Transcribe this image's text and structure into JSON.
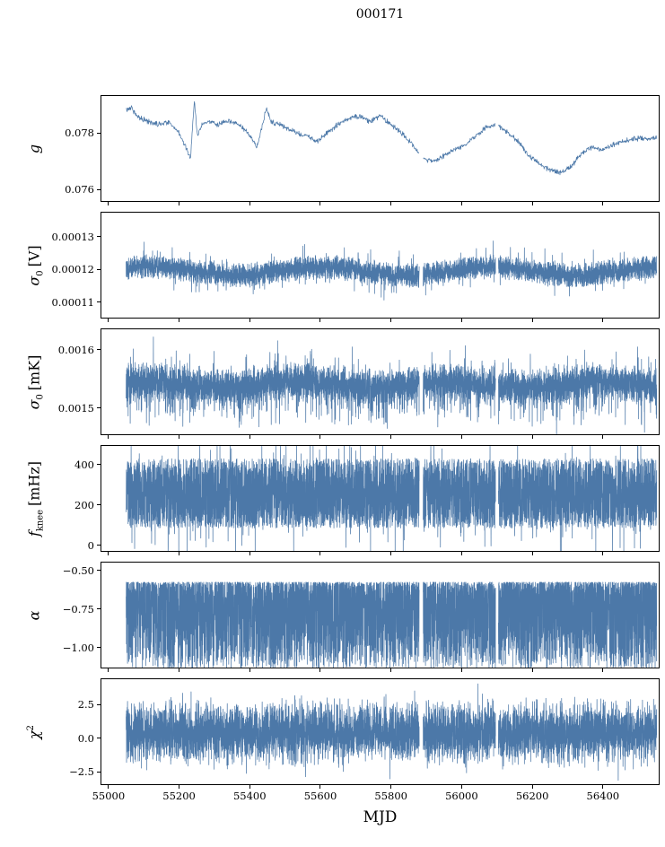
{
  "title": "000171",
  "chart_data": {
    "type": "line",
    "title": "000171",
    "xlabel": "MJD",
    "x_range": [
      54980,
      56558
    ],
    "x_data_range": [
      55050,
      56552
    ],
    "x_ticks": [
      {
        "v": 55000,
        "t": "55000"
      },
      {
        "v": 55200,
        "t": "55200"
      },
      {
        "v": 55400,
        "t": "55400"
      },
      {
        "v": 55600,
        "t": "55600"
      },
      {
        "v": 55800,
        "t": "55800"
      },
      {
        "v": 56000,
        "t": "56000"
      },
      {
        "v": 56200,
        "t": "56200"
      },
      {
        "v": 56400,
        "t": "56400"
      }
    ],
    "line_color": "#4c78a8",
    "axis_color": "#000000",
    "background": "#ffffff",
    "legend": "none",
    "grid": false,
    "gaps": [
      [
        55880,
        55891
      ],
      [
        56096,
        56104
      ]
    ],
    "panels": [
      {
        "id": "g",
        "label": {
          "main": "g",
          "sub": "",
          "sup": "",
          "unit": ""
        },
        "ylim": [
          0.0756,
          0.0793
        ],
        "yticks": [
          {
            "v": 0.076,
            "t": "0.076"
          },
          {
            "v": 0.078,
            "t": "0.078"
          }
        ],
        "style": "trend",
        "noise": 0.00011,
        "trend_x": [
          55050,
          55065,
          55080,
          55110,
          55140,
          55170,
          55200,
          55215,
          55232,
          55243,
          55252,
          55265,
          55280,
          55310,
          55340,
          55370,
          55400,
          55420,
          55435,
          55447,
          55460,
          55480,
          55500,
          55530,
          55560,
          55590,
          55620,
          55650,
          55680,
          55710,
          55740,
          55770,
          55800,
          55830,
          55860,
          55890,
          55920,
          55950,
          55980,
          56010,
          56040,
          56070,
          56100,
          56130,
          56160,
          56190,
          56220,
          56250,
          56280,
          56310,
          56340,
          56370,
          56400,
          56430,
          56460,
          56490,
          56510
        ],
        "trend_y": [
          0.0788,
          0.0789,
          0.0786,
          0.0784,
          0.0783,
          0.0784,
          0.078,
          0.0776,
          0.0771,
          0.0791,
          0.0779,
          0.0783,
          0.0784,
          0.0783,
          0.0784,
          0.0783,
          0.0779,
          0.0775,
          0.0782,
          0.0789,
          0.0784,
          0.0783,
          0.0782,
          0.078,
          0.0779,
          0.0777,
          0.078,
          0.0783,
          0.0785,
          0.0786,
          0.0784,
          0.0786,
          0.0783,
          0.078,
          0.0776,
          0.0771,
          0.077,
          0.0772,
          0.0774,
          0.0776,
          0.0779,
          0.0782,
          0.0783,
          0.078,
          0.0777,
          0.0772,
          0.0769,
          0.0767,
          0.0766,
          0.0768,
          0.0773,
          0.0775,
          0.0774,
          0.0776,
          0.0777,
          0.0778,
          0.0778
        ]
      },
      {
        "id": "sigma0_V",
        "label": {
          "main": "σ",
          "sub": "0",
          "sup": "",
          "unit": "[V]"
        },
        "ylim": [
          0.0001053,
          0.0001374
        ],
        "yticks": [
          {
            "v": 0.00011,
            "t": "0.00011"
          },
          {
            "v": 0.00012,
            "t": "0.00012"
          },
          {
            "v": 0.00013,
            "t": "0.00013"
          }
        ],
        "style": "band",
        "dist": "tri",
        "center": 0.0001195,
        "half": 4e-06,
        "mod": 1.3e-06,
        "mod_period": 480,
        "spike_p": 0.03,
        "spike_scale": 1.5
      },
      {
        "id": "sigma0_mK",
        "label": {
          "main": "σ",
          "sub": "0",
          "sup": "",
          "unit": "[mK]"
        },
        "ylim": [
          0.001455,
          0.001635
        ],
        "yticks": [
          {
            "v": 0.0015,
            "t": "0.0015"
          },
          {
            "v": 0.0016,
            "t": "0.0016"
          }
        ],
        "style": "band",
        "dist": "tri",
        "center": 0.001541,
        "half": 3.3e-05,
        "mod": 5e-06,
        "mod_period": 430,
        "spike_p": 0.06,
        "spike_scale": 1.5,
        "down_p": 0.1,
        "down_amp": 5.5e-05
      },
      {
        "id": "f_knee",
        "label": {
          "main": "f",
          "sub": "knee",
          "sup": "",
          "unit": "[mHz]"
        },
        "ylim": [
          -27,
          493
        ],
        "yticks": [
          {
            "v": 0,
            "t": "0"
          },
          {
            "v": 200,
            "t": "200"
          },
          {
            "v": 400,
            "t": "400"
          }
        ],
        "style": "band",
        "dist": "uni",
        "center": 258,
        "half": 172,
        "spike_p": 0.05,
        "spike_scale": 1.3,
        "down_p": 0.02,
        "down_amp": 120
      },
      {
        "id": "alpha",
        "label": {
          "main": "α",
          "sub": "",
          "sup": "",
          "unit": ""
        },
        "ylim": [
          -1.128,
          -0.448
        ],
        "yticks": [
          {
            "v": -0.5,
            "t": "−0.50"
          },
          {
            "v": -0.75,
            "t": "−0.75"
          },
          {
            "v": -1.0,
            "t": "−1.00"
          }
        ],
        "style": "band",
        "dist": "skewdown",
        "center": -0.575,
        "half": 0.55,
        "pow": 1.8,
        "down_p": 0.06,
        "down_amp": 0.35
      },
      {
        "id": "chi2",
        "label": {
          "main": "χ",
          "sub": "",
          "sup": "2",
          "unit": ""
        },
        "ylim": [
          -3.43,
          4.37
        ],
        "yticks": [
          {
            "v": -2.5,
            "t": "−2.5"
          },
          {
            "v": 0,
            "t": "0.0"
          },
          {
            "v": 2.5,
            "t": "2.5"
          }
        ],
        "style": "band",
        "dist": "gauss",
        "center": 0.4,
        "half": 1.0,
        "spike_p": 0.04,
        "spike_scale": 1.6
      }
    ]
  }
}
